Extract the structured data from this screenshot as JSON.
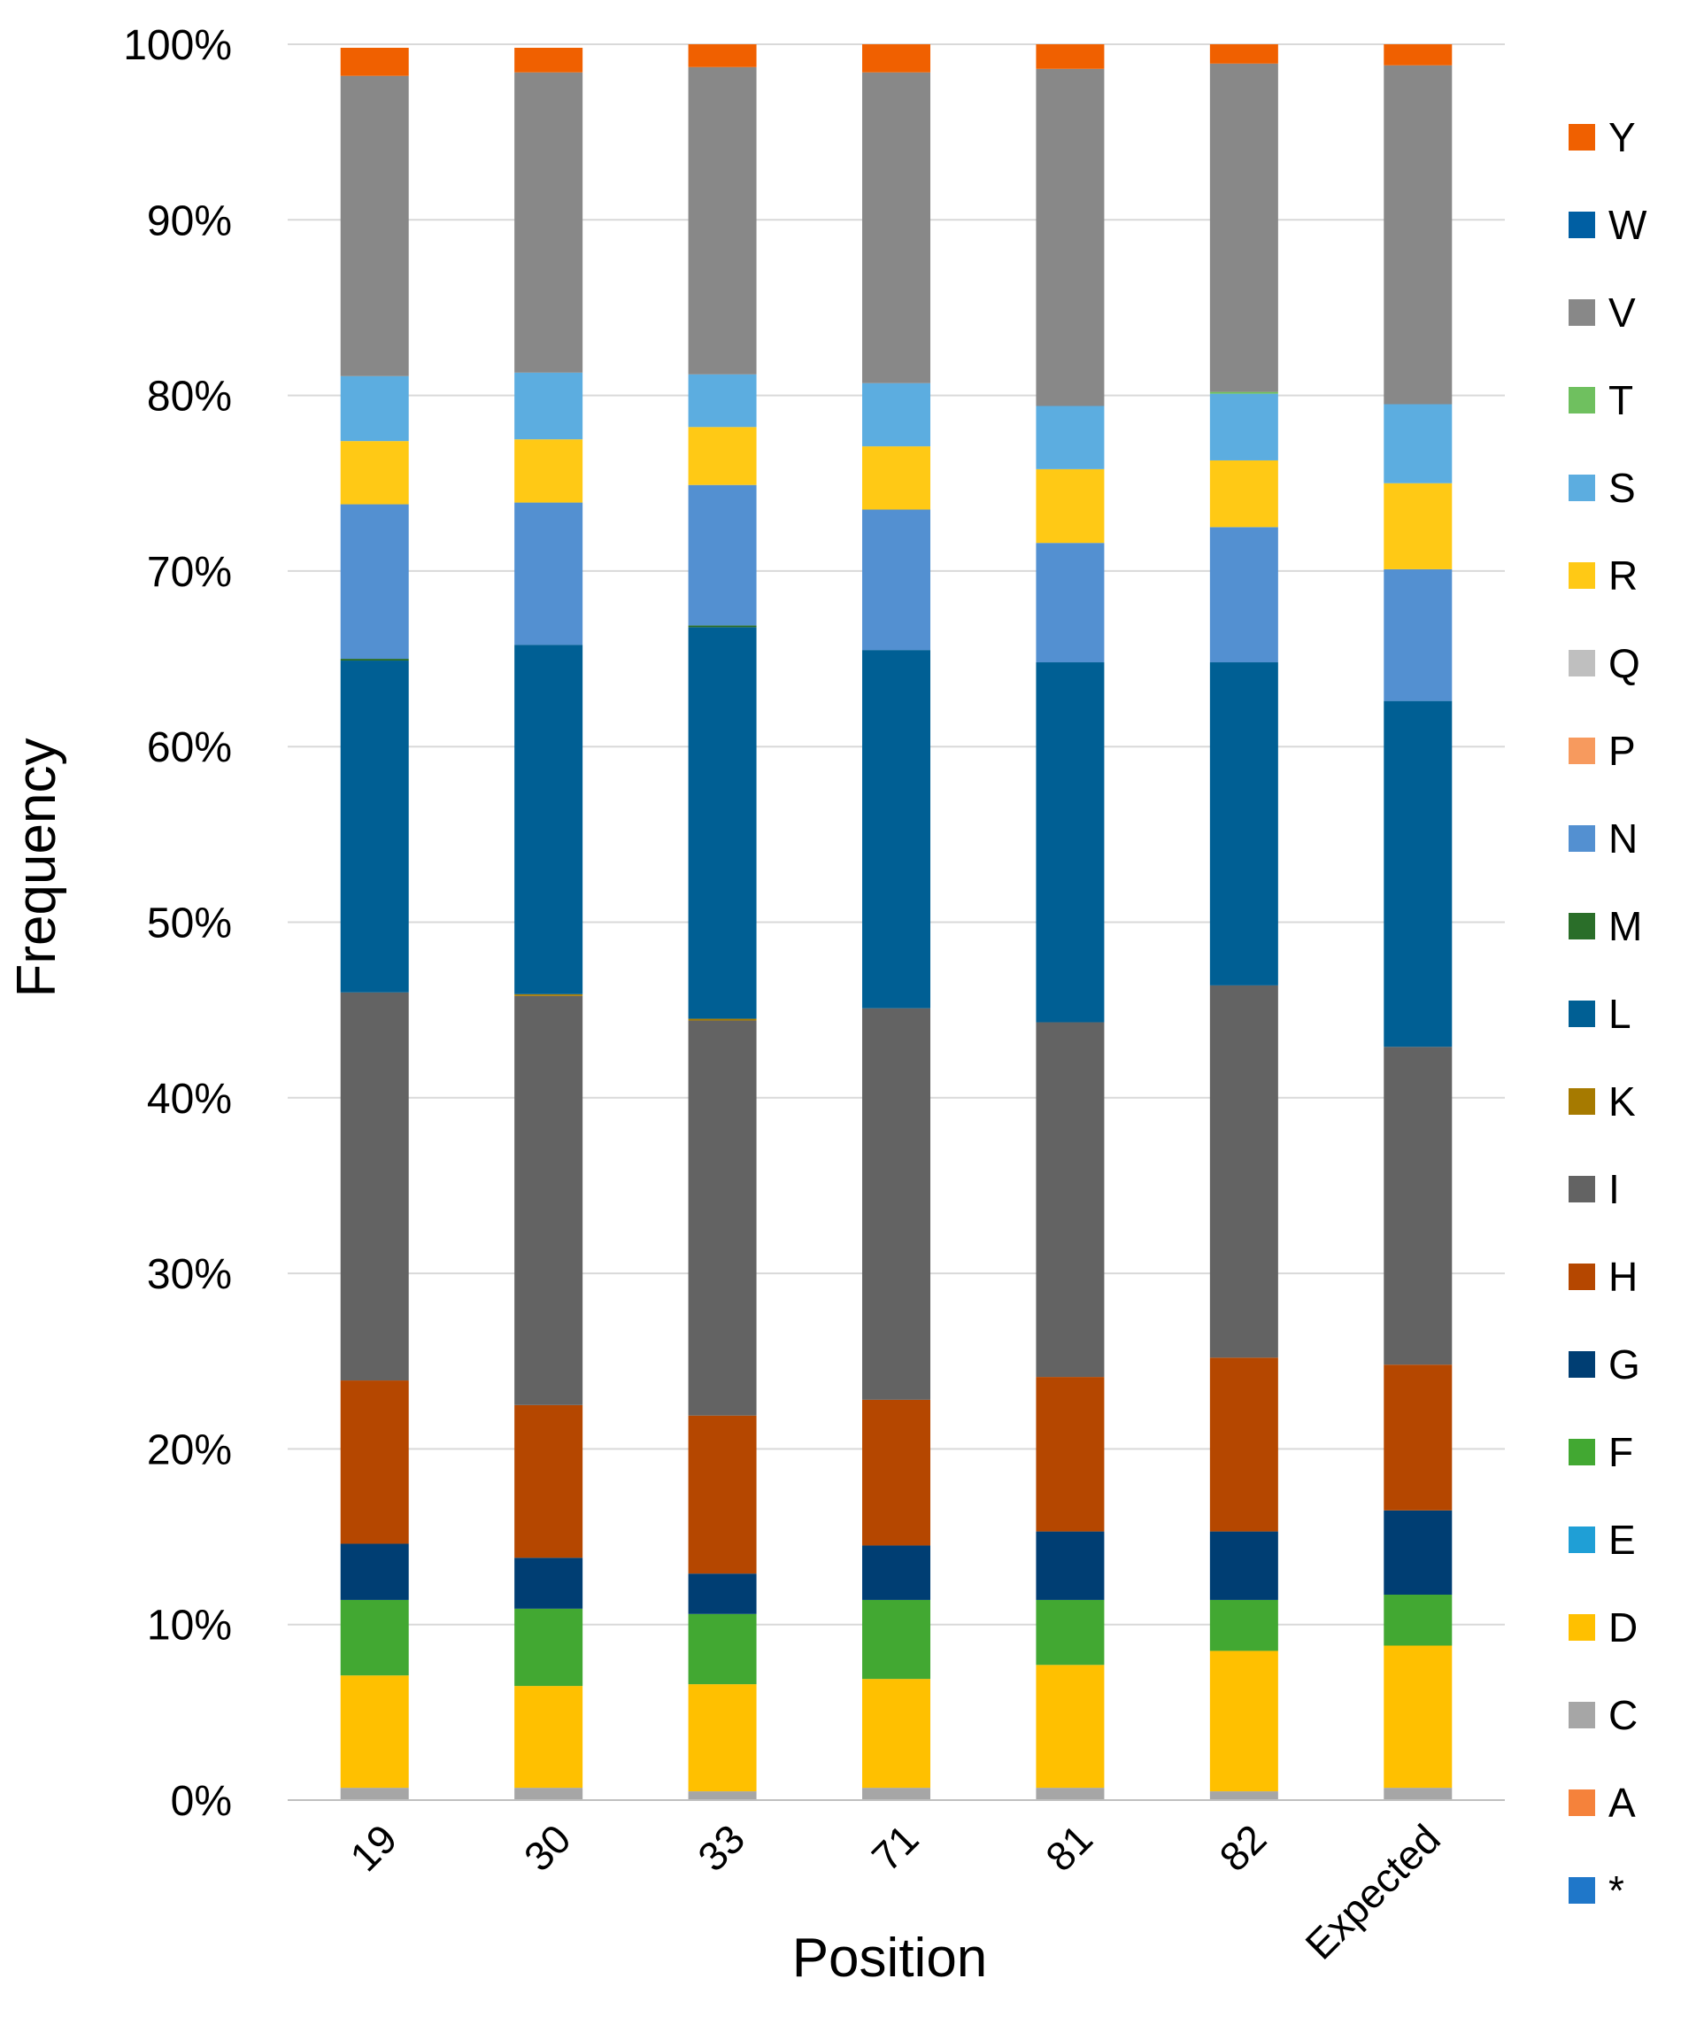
{
  "chart_data": {
    "type": "bar",
    "stacked": true,
    "percent": true,
    "xlabel": "Position",
    "ylabel": "Frequency",
    "ylim": [
      0,
      100
    ],
    "yticks": [
      "0%",
      "10%",
      "20%",
      "30%",
      "40%",
      "50%",
      "60%",
      "70%",
      "80%",
      "90%",
      "100%"
    ],
    "categories": [
      "19",
      "30",
      "33",
      "71",
      "81",
      "82",
      "Expected"
    ],
    "legend_position": "right",
    "series": [
      {
        "name": "*",
        "color": "#1f77c9",
        "values": [
          0,
          0,
          0,
          0,
          0,
          0,
          0
        ]
      },
      {
        "name": "A",
        "color": "#f5823b",
        "values": [
          0,
          0,
          0,
          0,
          0,
          0,
          0
        ]
      },
      {
        "name": "C",
        "color": "#a6a6a6",
        "values": [
          0.7,
          0.7,
          0.5,
          0.7,
          0.7,
          0.5,
          0.7
        ]
      },
      {
        "name": "D",
        "color": "#ffc000",
        "values": [
          6.4,
          5.8,
          6.1,
          6.2,
          7.0,
          8.0,
          8.1
        ]
      },
      {
        "name": "E",
        "color": "#1f9fd6",
        "values": [
          0,
          0,
          0,
          0,
          0,
          0,
          0
        ]
      },
      {
        "name": "F",
        "color": "#42a832",
        "values": [
          4.3,
          4.4,
          4.0,
          4.5,
          3.7,
          2.9,
          2.9
        ]
      },
      {
        "name": "G",
        "color": "#003e73",
        "values": [
          3.2,
          2.9,
          2.3,
          3.1,
          3.9,
          3.9,
          4.8
        ]
      },
      {
        "name": "H",
        "color": "#b54700",
        "values": [
          9.3,
          8.7,
          9.0,
          8.3,
          8.8,
          9.9,
          8.3
        ]
      },
      {
        "name": "I",
        "color": "#636363",
        "values": [
          22.1,
          23.3,
          22.5,
          22.3,
          20.2,
          21.2,
          18.1
        ]
      },
      {
        "name": "K",
        "color": "#a67a00",
        "values": [
          0,
          0.1,
          0.1,
          0,
          0,
          0,
          0
        ]
      },
      {
        "name": "L",
        "color": "#005f94",
        "values": [
          18.9,
          19.9,
          22.3,
          20.4,
          20.5,
          18.4,
          19.7
        ]
      },
      {
        "name": "M",
        "color": "#2a6e29",
        "values": [
          0.1,
          0,
          0.1,
          0,
          0,
          0,
          0
        ]
      },
      {
        "name": "N",
        "color": "#5390d1",
        "values": [
          8.8,
          8.1,
          8.0,
          8.0,
          6.8,
          7.7,
          7.5
        ]
      },
      {
        "name": "P",
        "color": "#f79a5e",
        "values": [
          0,
          0,
          0,
          0,
          0,
          0,
          0
        ]
      },
      {
        "name": "Q",
        "color": "#bfbfbf",
        "values": [
          0,
          0,
          0,
          0,
          0,
          0,
          0
        ]
      },
      {
        "name": "R",
        "color": "#ffc915",
        "values": [
          3.6,
          3.6,
          3.3,
          3.6,
          4.2,
          3.8,
          4.9
        ]
      },
      {
        "name": "S",
        "color": "#5cade0",
        "values": [
          3.7,
          3.8,
          3.0,
          3.6,
          3.6,
          3.8,
          4.5
        ]
      },
      {
        "name": "T",
        "color": "#6fc05f",
        "values": [
          0,
          0,
          0,
          0,
          0,
          0.1,
          0
        ]
      },
      {
        "name": "V",
        "color": "#888888",
        "values": [
          17.1,
          17.1,
          17.5,
          17.7,
          19.2,
          18.7,
          19.3
        ]
      },
      {
        "name": "W",
        "color": "#005fa3",
        "values": [
          0,
          0,
          0,
          0,
          0,
          0,
          0
        ]
      },
      {
        "name": "Y",
        "color": "#f06000",
        "values": [
          1.6,
          1.4,
          1.3,
          1.6,
          1.4,
          1.1,
          1.2
        ]
      }
    ]
  }
}
